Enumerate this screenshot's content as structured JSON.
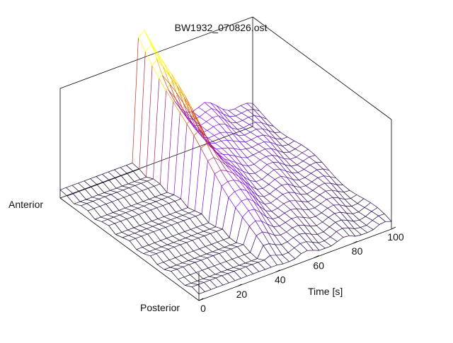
{
  "chart_data": {
    "type": "surface",
    "title": "BW1932_070826.ost",
    "xlabel": "Time [s]",
    "ylabel_far": "Anterior",
    "ylabel_near": "Posterior",
    "xlim": [
      0,
      100
    ],
    "x_ticks": [
      {
        "value": 0,
        "label": "0"
      },
      {
        "value": 20,
        "label": "20"
      },
      {
        "value": 40,
        "label": "40"
      },
      {
        "value": 60,
        "label": "60"
      },
      {
        "value": 80,
        "label": "80"
      },
      {
        "value": 100,
        "label": "100"
      }
    ],
    "grid": false,
    "colormap": [
      "#000000",
      "#7f00ff",
      "#cc3300",
      "#ffff00"
    ],
    "surface": {
      "time_steps": 32,
      "positions": 20,
      "baseline_until": 38,
      "peak_time": 42,
      "peak_height": 0.95,
      "ridge_decay_time": 75,
      "far_plateau_height": 0.3
    }
  }
}
